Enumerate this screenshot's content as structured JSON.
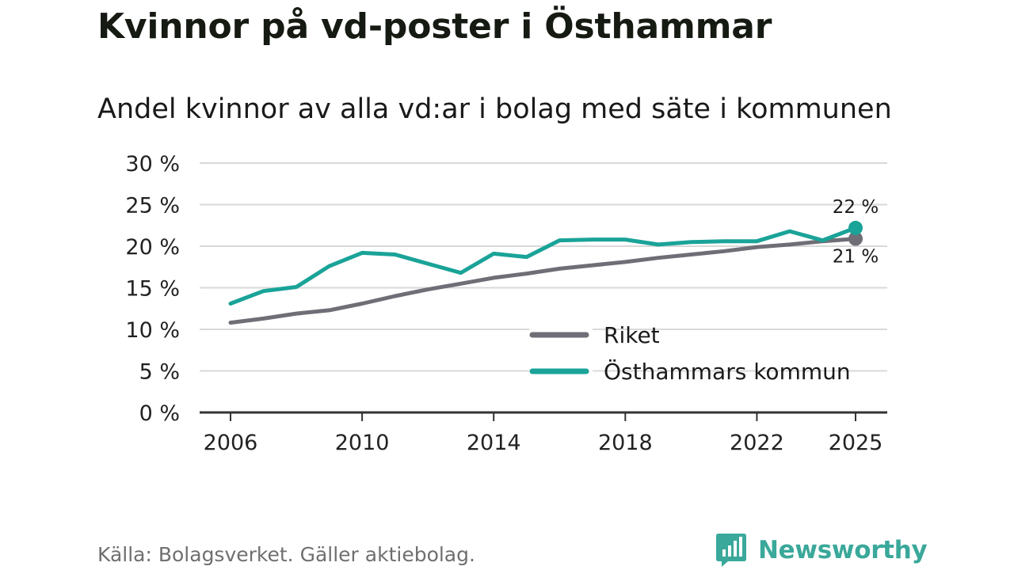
{
  "title": "Kvinnor på vd-poster i Östhammar",
  "subtitle": "Andel kvinnor av alla vd:ar i bolag med säte i kommunen",
  "source": "Källa: Bolagsverket. Gäller aktiebolag.",
  "brand": {
    "name": "Newsworthy",
    "icon": "newsworthy-logo-icon"
  },
  "colors": {
    "riket": "#6f6e76",
    "kommun": "#1aa398",
    "grid": "#d9d9d9",
    "axis": "#333333"
  },
  "chart_data": {
    "type": "line",
    "title": "Andel kvinnor av alla vd:ar i bolag med säte i kommunen",
    "xlabel": "",
    "ylabel": "",
    "xlim": [
      2006,
      2025
    ],
    "ylim": [
      0,
      30
    ],
    "x_ticks": [
      2006,
      2010,
      2014,
      2018,
      2022,
      2025
    ],
    "y_ticks": [
      0,
      5,
      10,
      15,
      20,
      25,
      30
    ],
    "y_tick_labels": [
      "0 %",
      "5 %",
      "10 %",
      "15 %",
      "20 %",
      "25 %",
      "30 %"
    ],
    "grid": true,
    "legend_position": "bottom-right",
    "x": [
      2006,
      2007,
      2008,
      2009,
      2010,
      2011,
      2012,
      2013,
      2014,
      2015,
      2016,
      2017,
      2018,
      2019,
      2020,
      2021,
      2022,
      2023,
      2024,
      2025
    ],
    "series": [
      {
        "name": "Riket",
        "color": "#6f6e76",
        "values": [
          10.8,
          11.3,
          11.9,
          12.3,
          13.1,
          14.0,
          14.8,
          15.5,
          16.2,
          16.7,
          17.3,
          17.7,
          18.1,
          18.6,
          19.0,
          19.4,
          19.9,
          20.2,
          20.6,
          20.9
        ],
        "end_label": "21 %"
      },
      {
        "name": "Östhammars kommun",
        "color": "#1aa398",
        "values": [
          13.1,
          14.6,
          15.1,
          17.6,
          19.2,
          19.0,
          17.9,
          16.8,
          19.1,
          18.7,
          20.7,
          20.8,
          20.8,
          20.2,
          20.5,
          20.6,
          20.6,
          21.8,
          20.7,
          22.2
        ],
        "end_label": "22 %"
      }
    ]
  }
}
